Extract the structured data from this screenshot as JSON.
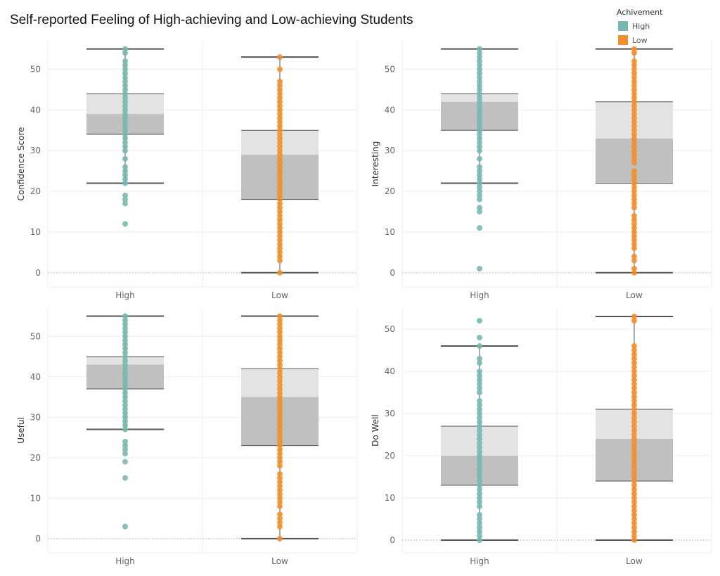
{
  "title": "Self-reported Feeling of High-achieving and Low-achieving Students",
  "legend": {
    "title": "Achivement",
    "items": [
      {
        "label": "High",
        "color": "#76b7b2"
      },
      {
        "label": "Low",
        "color": "#f28e2b"
      }
    ]
  },
  "colors": {
    "high_points": "#76b7b2",
    "low_points": "#f28e2b",
    "box_upper": "#e3e3e3",
    "box_lower": "#c0c0c0",
    "whisker": "#555555",
    "gridline": "#eeeeee",
    "zero_line": "#bbbbbb"
  },
  "chart_data": [
    {
      "type": "box",
      "ylabel": "Confidence Score",
      "categories": [
        "High",
        "Low"
      ],
      "yticks": [
        0,
        10,
        20,
        30,
        40,
        50
      ],
      "ylim": [
        -3.5,
        57
      ],
      "boxes": [
        {
          "category": "High",
          "whisker_low": 22,
          "q1": 34,
          "median": 39,
          "q3": 44,
          "whisker_high": 55
        },
        {
          "category": "Low",
          "whisker_low": 0,
          "q1": 18,
          "median": 29,
          "q3": 35,
          "whisker_high": 53
        }
      ],
      "points": [
        {
          "category": "High",
          "values": [
            12,
            17,
            18,
            19,
            22,
            23,
            24,
            25,
            26,
            28,
            30,
            31,
            32,
            33,
            34,
            35,
            36,
            37,
            38,
            39,
            40,
            41,
            42,
            43,
            44,
            45,
            46,
            47,
            48,
            49,
            50,
            51,
            52,
            54,
            55
          ]
        },
        {
          "category": "Low",
          "values": [
            0,
            3,
            4,
            5,
            6,
            7,
            8,
            9,
            10,
            11,
            12,
            13,
            14,
            15,
            16,
            17,
            18,
            19,
            20,
            21,
            22,
            23,
            24,
            25,
            26,
            27,
            28,
            29,
            30,
            31,
            32,
            33,
            34,
            35,
            36,
            37,
            38,
            39,
            40,
            41,
            42,
            43,
            44,
            45,
            46,
            47,
            50,
            53
          ]
        }
      ]
    },
    {
      "type": "box",
      "ylabel": "Interesting",
      "categories": [
        "High",
        "Low"
      ],
      "yticks": [
        0,
        10,
        20,
        30,
        40,
        50
      ],
      "ylim": [
        -3.5,
        57
      ],
      "boxes": [
        {
          "category": "High",
          "whisker_low": 22,
          "q1": 35,
          "median": 42,
          "q3": 44,
          "whisker_high": 55
        },
        {
          "category": "Low",
          "whisker_low": 0,
          "q1": 22,
          "median": 33,
          "q3": 42,
          "whisker_high": 55
        }
      ],
      "points": [
        {
          "category": "High",
          "values": [
            1,
            11,
            15,
            16,
            18,
            19,
            20,
            21,
            22,
            23,
            24,
            25,
            26,
            28,
            30,
            31,
            32,
            33,
            34,
            35,
            36,
            37,
            38,
            39,
            40,
            41,
            42,
            43,
            44,
            45,
            46,
            47,
            48,
            49,
            50,
            51,
            52,
            53,
            54,
            55
          ]
        },
        {
          "category": "Low",
          "values": [
            0,
            1,
            3,
            4,
            6,
            7,
            8,
            9,
            10,
            11,
            12,
            13,
            14,
            16,
            17,
            18,
            19,
            20,
            21,
            22,
            23,
            24,
            25,
            27,
            28,
            29,
            30,
            31,
            32,
            33,
            34,
            35,
            36,
            37,
            38,
            39,
            40,
            41,
            42,
            43,
            44,
            45,
            46,
            47,
            48,
            49,
            50,
            51,
            52,
            54,
            55
          ]
        }
      ]
    },
    {
      "type": "box",
      "ylabel": "Useful",
      "categories": [
        "High",
        "Low"
      ],
      "yticks": [
        0,
        10,
        20,
        30,
        40,
        50
      ],
      "ylim": [
        -3.5,
        57
      ],
      "boxes": [
        {
          "category": "High",
          "whisker_low": 27,
          "q1": 37,
          "median": 43,
          "q3": 45,
          "whisker_high": 55
        },
        {
          "category": "Low",
          "whisker_low": 0,
          "q1": 23,
          "median": 35,
          "q3": 42,
          "whisker_high": 55
        }
      ],
      "points": [
        {
          "category": "High",
          "values": [
            3,
            15,
            19,
            21,
            22,
            23,
            24,
            27,
            28,
            29,
            30,
            31,
            32,
            33,
            34,
            35,
            36,
            37,
            38,
            39,
            40,
            41,
            42,
            43,
            44,
            45,
            46,
            47,
            48,
            49,
            50,
            51,
            52,
            53,
            54,
            55
          ]
        },
        {
          "category": "Low",
          "values": [
            0,
            3,
            4,
            5,
            6,
            8,
            9,
            10,
            11,
            12,
            13,
            14,
            15,
            16,
            18,
            19,
            20,
            21,
            22,
            23,
            24,
            25,
            26,
            27,
            28,
            29,
            30,
            31,
            32,
            33,
            34,
            35,
            36,
            37,
            38,
            39,
            40,
            41,
            42,
            43,
            44,
            45,
            46,
            47,
            48,
            49,
            50,
            51,
            52,
            53,
            54,
            55
          ]
        }
      ]
    },
    {
      "type": "box",
      "ylabel": "Do Well",
      "categories": [
        "High",
        "Low"
      ],
      "yticks": [
        0,
        10,
        20,
        30,
        40,
        50
      ],
      "ylim": [
        -3,
        55
      ],
      "boxes": [
        {
          "category": "High",
          "whisker_low": 0,
          "q1": 13,
          "median": 20,
          "q3": 27,
          "whisker_high": 46
        },
        {
          "category": "Low",
          "whisker_low": 0,
          "q1": 14,
          "median": 24,
          "q3": 31,
          "whisker_high": 53
        }
      ],
      "points": [
        {
          "category": "High",
          "values": [
            0,
            1,
            2,
            3,
            4,
            5,
            6,
            8,
            9,
            10,
            11,
            12,
            13,
            14,
            15,
            16,
            17,
            18,
            19,
            20,
            21,
            22,
            23,
            24,
            25,
            26,
            27,
            28,
            29,
            30,
            31,
            32,
            33,
            35,
            36,
            37,
            38,
            39,
            40,
            42,
            43,
            46,
            48,
            52
          ]
        },
        {
          "category": "Low",
          "values": [
            0,
            1,
            2,
            3,
            4,
            5,
            6,
            7,
            8,
            9,
            10,
            11,
            12,
            13,
            14,
            15,
            16,
            17,
            18,
            19,
            20,
            21,
            22,
            23,
            24,
            25,
            26,
            27,
            28,
            29,
            30,
            31,
            32,
            33,
            34,
            35,
            36,
            37,
            38,
            39,
            40,
            41,
            42,
            43,
            44,
            45,
            46,
            52,
            53
          ]
        }
      ]
    }
  ]
}
